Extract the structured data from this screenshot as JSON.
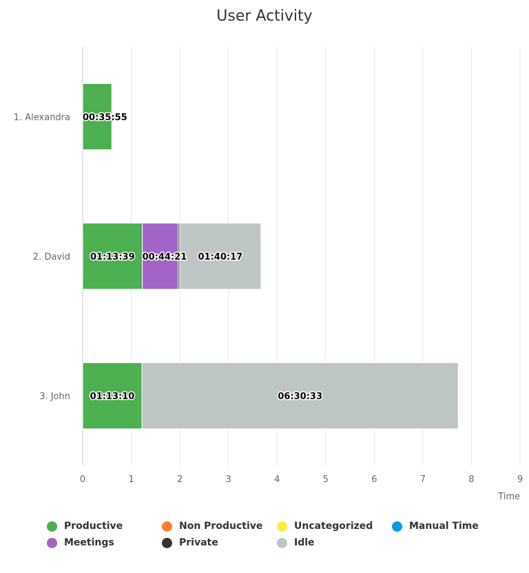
{
  "chart_data": {
    "type": "bar",
    "orientation": "horizontal",
    "stacked": true,
    "title": "User Activity",
    "xlabel": "Time",
    "ylabel": "",
    "xlim": [
      0,
      9
    ],
    "x_ticks": [
      "0",
      "1",
      "2",
      "3",
      "4",
      "5",
      "6",
      "7",
      "8",
      "9"
    ],
    "grid": true,
    "legend_position": "bottom",
    "categories": [
      "1. Alexandra",
      "2. David",
      "3. John"
    ],
    "series": [
      {
        "name": "Productive",
        "color": "#4caf50",
        "values": [
          0.5986,
          1.2275,
          1.2194
        ],
        "labels": [
          "00:35:55",
          "01:13:39",
          "01:13:10"
        ]
      },
      {
        "name": "Non Productive",
        "color": "#ff7f2a",
        "values": [
          0,
          0,
          0
        ],
        "labels": [
          "",
          "",
          ""
        ]
      },
      {
        "name": "Uncategorized",
        "color": "#ffeb3b",
        "values": [
          0,
          0,
          0
        ],
        "labels": [
          "",
          "",
          ""
        ]
      },
      {
        "name": "Manual Time",
        "color": "#039be5",
        "values": [
          0,
          0,
          0
        ],
        "labels": [
          "",
          "",
          ""
        ]
      },
      {
        "name": "Meetings",
        "color": "#a463c8",
        "values": [
          0,
          0.7392,
          0
        ],
        "labels": [
          "",
          "00:44:21",
          ""
        ]
      },
      {
        "name": "Private",
        "color": "#333333",
        "values": [
          0,
          0.03,
          0
        ],
        "labels": [
          "",
          "",
          ""
        ]
      },
      {
        "name": "Idle",
        "color": "#bdc5c5",
        "values": [
          0,
          1.6714,
          6.5092
        ],
        "labels": [
          "",
          "01:40:17",
          "06:30:33"
        ]
      }
    ]
  }
}
